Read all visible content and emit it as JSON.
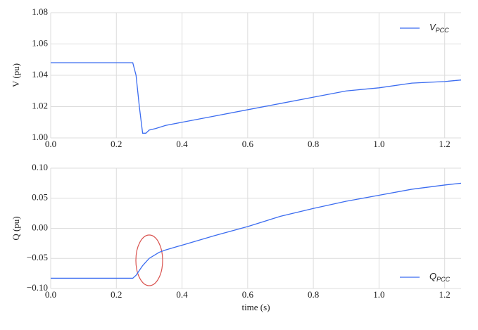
{
  "chart_data": [
    {
      "type": "line",
      "ylabel": "V (pu)",
      "x": [
        0,
        0.25,
        0.26,
        0.27,
        0.28,
        0.29,
        0.3,
        0.32,
        0.35,
        0.4,
        0.5,
        0.6,
        0.7,
        0.8,
        0.9,
        1.0,
        1.1,
        1.2,
        1.25
      ],
      "series": [
        {
          "name": "V",
          "subscript": "PCC",
          "color": "#3b6cf0",
          "values": [
            1.048,
            1.048,
            1.04,
            1.02,
            1.003,
            1.003,
            1.005,
            1.006,
            1.008,
            1.01,
            1.014,
            1.018,
            1.022,
            1.026,
            1.03,
            1.032,
            1.035,
            1.036,
            1.037
          ]
        }
      ],
      "xlim": [
        0,
        1.25
      ],
      "xticks": [
        {
          "value": 0,
          "label": "0.0"
        },
        {
          "value": 0.2,
          "label": "0.2"
        },
        {
          "value": 0.4,
          "label": "0.4"
        },
        {
          "value": 0.6,
          "label": "0.6"
        },
        {
          "value": 0.8,
          "label": "0.8"
        },
        {
          "value": 1.0,
          "label": "1.0"
        },
        {
          "value": 1.2,
          "label": "1.2"
        }
      ],
      "ylim": [
        1.0,
        1.08
      ],
      "yticks": [
        {
          "value": 1.0,
          "label": "1.00"
        },
        {
          "value": 1.02,
          "label": "1.02"
        },
        {
          "value": 1.04,
          "label": "1.04"
        },
        {
          "value": 1.06,
          "label": "1.06"
        },
        {
          "value": 1.08,
          "label": "1.08"
        }
      ],
      "grid": true,
      "legend": "upper right"
    },
    {
      "type": "line",
      "ylabel": "Q (pu)",
      "xlabel": "time (s)",
      "x": [
        0,
        0.25,
        0.26,
        0.28,
        0.3,
        0.33,
        0.35,
        0.4,
        0.5,
        0.6,
        0.7,
        0.8,
        0.9,
        1.0,
        1.1,
        1.2,
        1.25
      ],
      "series": [
        {
          "name": "Q",
          "subscript": "PCC",
          "color": "#3b6cf0",
          "values": [
            -0.083,
            -0.083,
            -0.078,
            -0.062,
            -0.05,
            -0.04,
            -0.036,
            -0.028,
            -0.012,
            0.003,
            0.02,
            0.033,
            0.045,
            0.055,
            0.065,
            0.072,
            0.075
          ]
        }
      ],
      "xlim": [
        0,
        1.25
      ],
      "xticks": [
        {
          "value": 0,
          "label": "0.0"
        },
        {
          "value": 0.2,
          "label": "0.2"
        },
        {
          "value": 0.4,
          "label": "0.4"
        },
        {
          "value": 0.6,
          "label": "0.6"
        },
        {
          "value": 0.8,
          "label": "0.8"
        },
        {
          "value": 1.0,
          "label": "1.0"
        },
        {
          "value": 1.2,
          "label": "1.2"
        }
      ],
      "ylim": [
        -0.1,
        0.1
      ],
      "yticks": [
        {
          "value": -0.1,
          "label": "−0.10"
        },
        {
          "value": -0.05,
          "label": "−0.05"
        },
        {
          "value": 0,
          "label": "0.00"
        },
        {
          "value": 0.05,
          "label": "0.05"
        },
        {
          "value": 0.1,
          "label": "0.10"
        }
      ],
      "grid": true,
      "legend": "lower right"
    }
  ]
}
